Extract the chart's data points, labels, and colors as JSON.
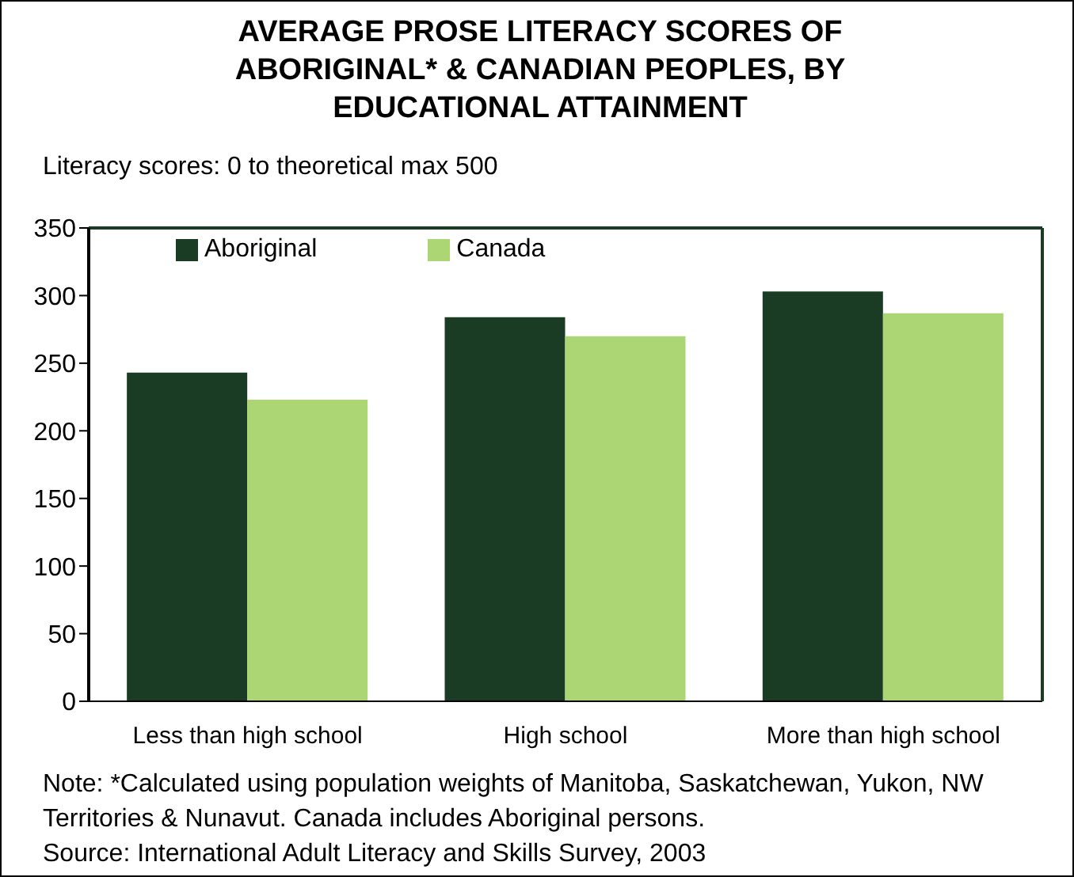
{
  "chart_data": {
    "type": "bar",
    "title": "AVERAGE PROSE LITERACY SCORES OF ABORIGINAL* & CANADIAN PEOPLES, BY EDUCATIONAL ATTAINMENT",
    "ylabel": "Literacy scores: 0 to theoretical max 500",
    "categories": [
      "Less than high school",
      "High school",
      "More than high school"
    ],
    "series": [
      {
        "name": "Aboriginal",
        "color": "#1a3c24",
        "values": [
          243,
          284,
          303
        ]
      },
      {
        "name": "Canada",
        "color": "#acd574",
        "values": [
          223,
          270,
          287
        ]
      }
    ],
    "ylim": [
      0,
      350
    ],
    "yticks": [
      0,
      50,
      100,
      150,
      200,
      250,
      300,
      350
    ],
    "grid": false,
    "legend": "top left",
    "annotations": [
      "Note: *Calculated using population weights of Manitoba, Saskatchewan, Yukon, NW Territories & Nunavut. Canada includes Aboriginal persons.",
      "Source: International Adult Literacy and Skills Survey, 2003"
    ]
  }
}
